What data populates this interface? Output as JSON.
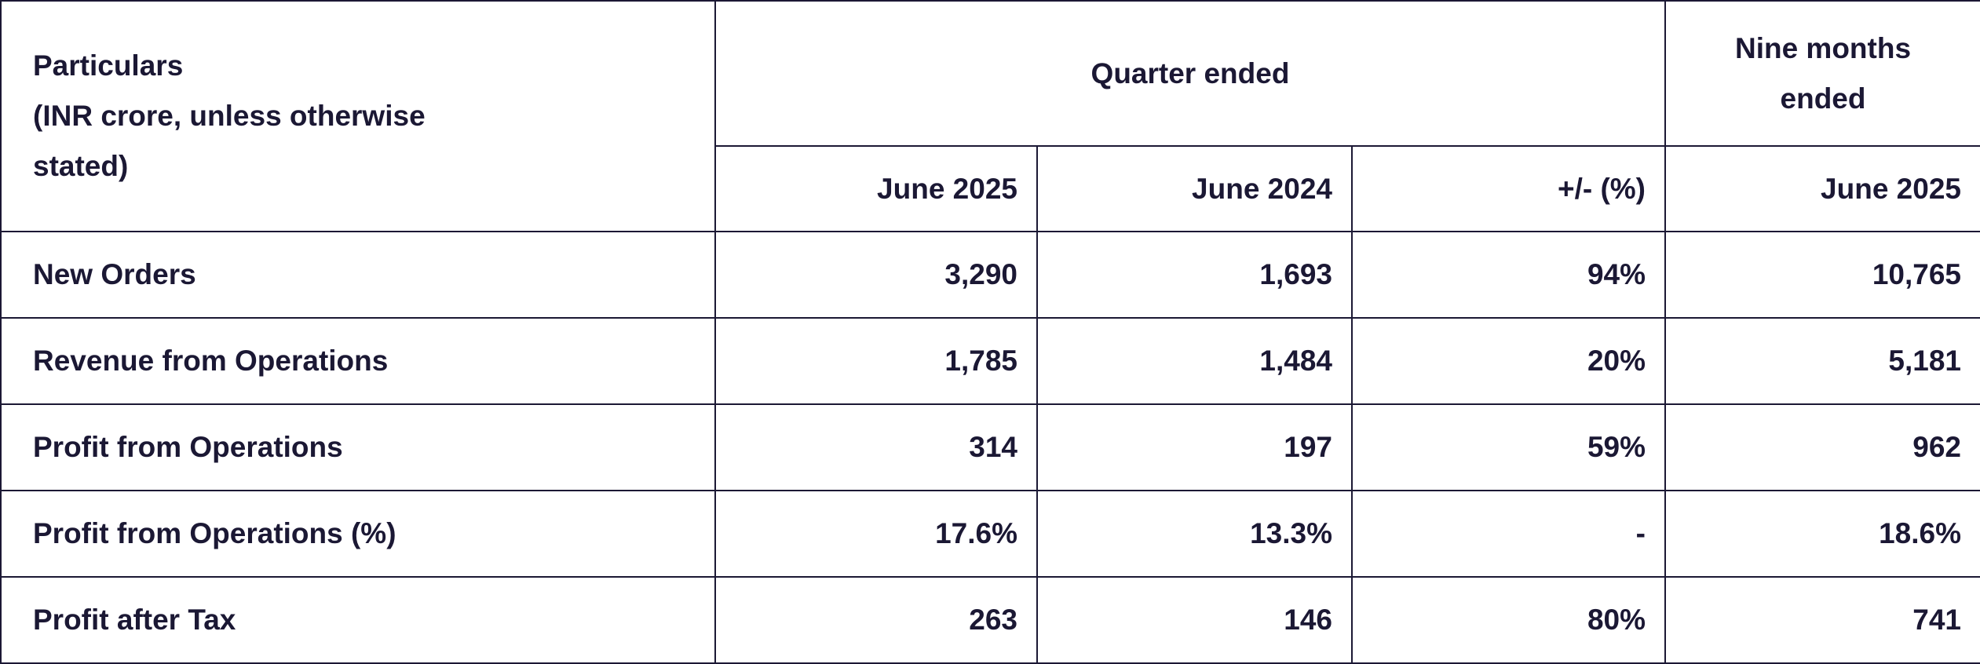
{
  "table": {
    "header": {
      "particulars": "Particulars",
      "unit_note": "(INR crore, unless otherwise stated)",
      "quarter": "Quarter ended",
      "nine_months": "Nine months ended",
      "columns": [
        "June 2025",
        "June 2024",
        "+/- (%)",
        "June 2025"
      ]
    },
    "rows": [
      [
        "New Orders",
        "3,290",
        "1,693",
        "94%",
        "10,765"
      ],
      [
        "Revenue from Operations",
        "1,785",
        "1,484",
        "20%",
        "5,181"
      ],
      [
        "Profit from Operations",
        "314",
        "197",
        "59%",
        "962"
      ],
      [
        "Profit from Operations (%)",
        "17.6%",
        "13.3%",
        "-",
        "18.6%"
      ],
      [
        "Profit after Tax",
        "263",
        "146",
        "80%",
        "741"
      ]
    ]
  }
}
